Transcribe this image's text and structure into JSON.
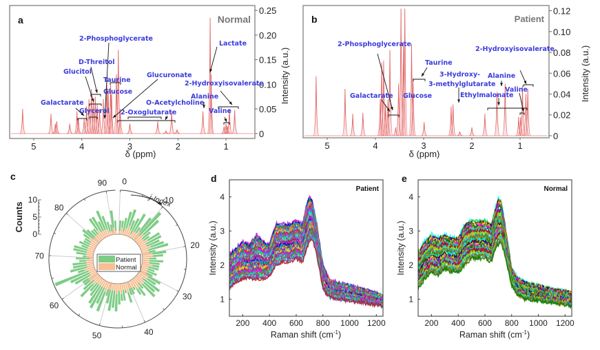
{
  "figure": {
    "panels": [
      "a",
      "b",
      "c",
      "d",
      "e"
    ]
  },
  "chart_data": [
    {
      "id": "a",
      "type": "line",
      "panel_label": "a",
      "title": "Normal",
      "xlabel": "δ (ppm)",
      "ylabel": "Intensity (a.u.)",
      "xlim": [
        5.5,
        0.4
      ],
      "ylim": [
        -0.01,
        0.26
      ],
      "xticks": [
        5,
        4,
        3,
        2,
        1
      ],
      "yticks": [
        "0",
        "0.05",
        "0.10",
        "0.15",
        "0.20",
        "0.25"
      ],
      "ytick_values": [
        0,
        0.05,
        0.1,
        0.15,
        0.2,
        0.25
      ],
      "color": "#e06060",
      "peaks": [
        {
          "x": 5.23,
          "y": 0.05
        },
        {
          "x": 4.64,
          "y": 0.04
        },
        {
          "x": 4.55,
          "y": 0.02
        },
        {
          "x": 4.52,
          "y": 0.025
        },
        {
          "x": 4.25,
          "y": 0.02
        },
        {
          "x": 4.1,
          "y": 0.045
        },
        {
          "x": 4.07,
          "y": 0.03
        },
        {
          "x": 3.95,
          "y": 0.03
        },
        {
          "x": 3.9,
          "y": 0.055
        },
        {
          "x": 3.85,
          "y": 0.07
        },
        {
          "x": 3.8,
          "y": 0.09
        },
        {
          "x": 3.76,
          "y": 0.065
        },
        {
          "x": 3.72,
          "y": 0.075
        },
        {
          "x": 3.68,
          "y": 0.06
        },
        {
          "x": 3.63,
          "y": 0.05
        },
        {
          "x": 3.55,
          "y": 0.07
        },
        {
          "x": 3.48,
          "y": 0.11
        },
        {
          "x": 3.45,
          "y": 0.09
        },
        {
          "x": 3.4,
          "y": 0.1
        },
        {
          "x": 3.38,
          "y": 0.08
        },
        {
          "x": 3.28,
          "y": 0.12
        },
        {
          "x": 3.24,
          "y": 0.17
        },
        {
          "x": 3.2,
          "y": 0.05
        },
        {
          "x": 3.0,
          "y": 0.02
        },
        {
          "x": 2.42,
          "y": 0.025
        },
        {
          "x": 2.25,
          "y": 0.005
        },
        {
          "x": 2.13,
          "y": 0.045
        },
        {
          "x": 2.02,
          "y": 0.008
        },
        {
          "x": 1.48,
          "y": 0.045
        },
        {
          "x": 1.33,
          "y": 0.235
        },
        {
          "x": 1.31,
          "y": 0.12
        },
        {
          "x": 1.04,
          "y": 0.015
        },
        {
          "x": 1.0,
          "y": 0.02
        },
        {
          "x": 0.97,
          "y": 0.015
        },
        {
          "x": 0.93,
          "y": 0.05
        },
        {
          "x": 0.82,
          "y": 0.048
        }
      ],
      "annotations": [
        {
          "text": "2-Phosphoglycerate"
        },
        {
          "text": "D-Threitol"
        },
        {
          "text": "Glucitol"
        },
        {
          "text": "Taurine"
        },
        {
          "text": "Glucose"
        },
        {
          "text": "Glucuronate"
        },
        {
          "text": "Lactate"
        },
        {
          "text": "2-Hydroxyisovalerate"
        },
        {
          "text": "Alanine"
        },
        {
          "text": "O-Acetylcholine"
        },
        {
          "text": "Galactarate"
        },
        {
          "text": "Glycerol"
        },
        {
          "text": "2-Oxoglutarate"
        },
        {
          "text": "Valine"
        }
      ]
    },
    {
      "id": "b",
      "type": "line",
      "panel_label": "b",
      "title": "Patient",
      "xlabel": "δ (ppm)",
      "ylabel": "Intensity (a.u.)",
      "xlim": [
        5.5,
        0.4
      ],
      "ylim": [
        -0.002,
        0.125
      ],
      "xticks": [
        5,
        4,
        3,
        2,
        1
      ],
      "yticks": [
        "0",
        "0.02",
        "0.04",
        "0.06",
        "0.08",
        "0.10",
        "0.12"
      ],
      "ytick_values": [
        0,
        0.02,
        0.04,
        0.06,
        0.08,
        0.1,
        0.12
      ],
      "color": "#e06060",
      "peaks": [
        {
          "x": 5.23,
          "y": 0.057
        },
        {
          "x": 4.63,
          "y": 0.045
        },
        {
          "x": 4.47,
          "y": 0.021
        },
        {
          "x": 4.26,
          "y": 0.022
        },
        {
          "x": 3.9,
          "y": 0.035
        },
        {
          "x": 3.87,
          "y": 0.07
        },
        {
          "x": 3.83,
          "y": 0.072
        },
        {
          "x": 3.79,
          "y": 0.03
        },
        {
          "x": 3.74,
          "y": 0.035
        },
        {
          "x": 3.7,
          "y": 0.082
        },
        {
          "x": 3.58,
          "y": 0.008
        },
        {
          "x": 3.52,
          "y": 0.05
        },
        {
          "x": 3.47,
          "y": 0.122
        },
        {
          "x": 3.42,
          "y": 0.09
        },
        {
          "x": 3.39,
          "y": 0.122
        },
        {
          "x": 3.25,
          "y": 0.088
        },
        {
          "x": 3.22,
          "y": 0.055
        },
        {
          "x": 2.99,
          "y": 0.013
        },
        {
          "x": 2.43,
          "y": 0.028
        },
        {
          "x": 2.39,
          "y": 0.03
        },
        {
          "x": 2.25,
          "y": 0.004
        },
        {
          "x": 2.0,
          "y": 0.008
        },
        {
          "x": 1.73,
          "y": 0.021
        },
        {
          "x": 1.48,
          "y": 0.042
        },
        {
          "x": 1.31,
          "y": 0.05
        },
        {
          "x": 1.03,
          "y": 0.018
        },
        {
          "x": 0.99,
          "y": 0.018
        },
        {
          "x": 0.95,
          "y": 0.048
        },
        {
          "x": 0.88,
          "y": 0.04
        },
        {
          "x": 0.84,
          "y": 0.045
        }
      ],
      "annotations": [
        {
          "text": "2-Phosphoglycerate"
        },
        {
          "text": "Taurine"
        },
        {
          "text": "3-Hydroxy-"
        },
        {
          "text": "3-methylglutarate"
        },
        {
          "text": "Alanine"
        },
        {
          "text": "2-Hydroxyisovalerate"
        },
        {
          "text": "Valine"
        },
        {
          "text": "Galactarate"
        },
        {
          "text": "Glucose"
        },
        {
          "text": "Ethylmalonate"
        }
      ]
    },
    {
      "id": "c",
      "type": "bar",
      "subtype": "polar-stacked",
      "panel_label": "c",
      "angular_label": "j-Index",
      "radial_label": "Counts",
      "radial_ticks": [
        "0",
        "5",
        "10"
      ],
      "radial_tick_values": [
        0,
        5,
        10
      ],
      "angular_ticks": [
        "0",
        "10",
        "20",
        "30",
        "40",
        "50",
        "60",
        "70",
        "80",
        "90"
      ],
      "angular_tick_values": [
        0,
        10,
        20,
        30,
        40,
        50,
        60,
        70,
        80,
        90
      ],
      "angular_range": [
        0,
        92
      ],
      "legend": {
        "position": "center",
        "entries": [
          {
            "name": "Patient",
            "color": "#7dcc85"
          },
          {
            "name": "Normal",
            "color": "#f9be92"
          }
        ]
      },
      "series": [
        {
          "name": "Normal",
          "color": "#f9be92",
          "values": [
            1,
            2,
            1,
            2,
            3,
            2,
            1,
            2,
            2,
            3,
            2,
            3,
            2,
            2,
            3,
            2,
            2,
            3,
            2,
            2,
            3,
            3,
            2,
            2,
            2,
            3,
            2,
            2,
            2,
            2,
            3,
            3,
            2,
            3,
            3,
            2,
            3,
            3,
            2,
            2,
            2,
            3,
            2,
            2,
            3,
            2,
            3,
            2,
            2,
            2,
            2,
            3,
            2,
            2,
            2,
            2,
            2,
            3,
            2,
            3,
            3,
            2,
            2,
            2,
            3,
            2,
            2,
            2,
            2,
            1,
            2,
            2,
            2,
            2,
            2,
            2,
            2,
            2,
            3,
            2,
            2,
            2,
            2,
            3,
            2,
            2,
            2,
            2,
            1,
            1,
            2,
            1
          ]
        },
        {
          "name": "Patient",
          "color": "#7dcc85",
          "values": [
            3,
            2,
            4,
            5,
            5,
            3,
            5,
            6,
            2,
            5,
            9,
            6,
            3,
            2,
            4,
            5,
            4,
            4,
            6,
            2,
            4,
            3,
            2,
            4,
            3,
            2,
            3,
            2,
            3,
            2,
            4,
            3,
            6,
            4,
            5,
            2,
            3,
            2,
            1,
            2,
            2,
            3,
            1,
            3,
            2,
            4,
            5,
            5,
            6,
            4,
            2,
            6,
            5,
            7,
            6,
            4,
            3,
            5,
            4,
            2,
            2,
            5,
            6,
            12,
            2,
            5,
            4,
            4,
            2,
            4,
            1,
            3,
            4,
            4,
            2,
            3,
            2,
            2,
            2,
            4,
            3,
            2,
            2,
            4,
            5,
            3,
            6,
            4,
            3,
            2,
            5,
            3
          ]
        }
      ]
    },
    {
      "id": "d",
      "type": "line",
      "panel_label": "d",
      "title": "Patient",
      "xlabel": "Raman shift (cm⁻¹)",
      "xlabel_main": "Raman shift (cm",
      "xlabel_sup": "-1",
      "xlabel_close": ")",
      "ylabel": "Intensity (a.u.)",
      "xlim": [
        100,
        1250
      ],
      "ylim": [
        0.5,
        4.5
      ],
      "xticks": [
        200,
        400,
        600,
        800,
        1000,
        1200
      ],
      "yticks": [
        1,
        2,
        3,
        4
      ],
      "series_count": 40,
      "envelope": {
        "x": [
          100,
          150,
          200,
          250,
          300,
          350,
          400,
          450,
          500,
          550,
          600,
          650,
          680,
          700,
          720,
          750,
          800,
          850,
          900,
          1000,
          1100,
          1250
        ],
        "upper": [
          2.3,
          2.5,
          2.7,
          2.6,
          2.9,
          2.7,
          2.6,
          3.2,
          3.2,
          3.2,
          3.3,
          3.2,
          3.8,
          4.05,
          3.9,
          3.3,
          2.0,
          1.55,
          1.5,
          1.4,
          1.3,
          1.1
        ],
        "lower": [
          1.3,
          1.5,
          1.6,
          1.6,
          1.6,
          1.6,
          1.7,
          2.0,
          2.1,
          2.1,
          2.2,
          2.1,
          2.5,
          2.7,
          2.8,
          2.4,
          1.3,
          1.05,
          1.0,
          0.95,
          0.9,
          0.8
        ]
      },
      "colors": [
        "#8a2be2",
        "#ff1493",
        "#0000cd",
        "#00ced1",
        "#228b22",
        "#ff6347",
        "#9400d3",
        "#20b2aa",
        "#ffd700",
        "#4169e1",
        "#dc143c",
        "#2e8b57",
        "#ff00ff",
        "#1e90ff",
        "#808000",
        "#00fa9a",
        "#c71585",
        "#40e0d0",
        "#6a5acd",
        "#b22222"
      ]
    },
    {
      "id": "e",
      "type": "line",
      "panel_label": "e",
      "title": "Normal",
      "xlabel": "Raman shift (cm⁻¹)",
      "xlabel_main": "Raman shift (cm",
      "xlabel_sup": "-1",
      "xlabel_close": ")",
      "ylabel": "Intensity (a.u.)",
      "xlim": [
        100,
        1250
      ],
      "ylim": [
        0.5,
        4.5
      ],
      "xticks": [
        200,
        400,
        600,
        800,
        1000,
        1200
      ],
      "yticks": [
        1,
        2,
        3,
        4
      ],
      "series_count": 40,
      "envelope": {
        "x": [
          100,
          150,
          200,
          250,
          300,
          350,
          400,
          450,
          500,
          550,
          600,
          650,
          680,
          700,
          720,
          750,
          800,
          850,
          900,
          1000,
          1100,
          1250
        ],
        "upper": [
          2.4,
          2.7,
          2.9,
          2.8,
          2.9,
          2.8,
          2.8,
          3.2,
          3.3,
          3.3,
          3.3,
          3.2,
          3.7,
          3.95,
          3.9,
          3.2,
          1.9,
          1.6,
          1.5,
          1.4,
          1.3,
          1.2
        ],
        "lower": [
          1.3,
          1.6,
          1.8,
          1.7,
          1.9,
          1.8,
          1.8,
          2.0,
          2.2,
          2.2,
          2.2,
          2.1,
          2.5,
          2.6,
          2.7,
          2.3,
          1.4,
          1.1,
          1.0,
          0.95,
          0.9,
          0.8
        ]
      },
      "colors": [
        "#00ffff",
        "#32cd32",
        "#8b0000",
        "#0000cd",
        "#ffd700",
        "#228b22",
        "#ff00ff",
        "#006400",
        "#9acd32",
        "#00bfff",
        "#800080",
        "#ff0000",
        "#2f4f4f",
        "#7fff00",
        "#daa520",
        "#00ced1",
        "#556b2f",
        "#4682b4",
        "#b8860b",
        "#008000"
      ]
    }
  ]
}
